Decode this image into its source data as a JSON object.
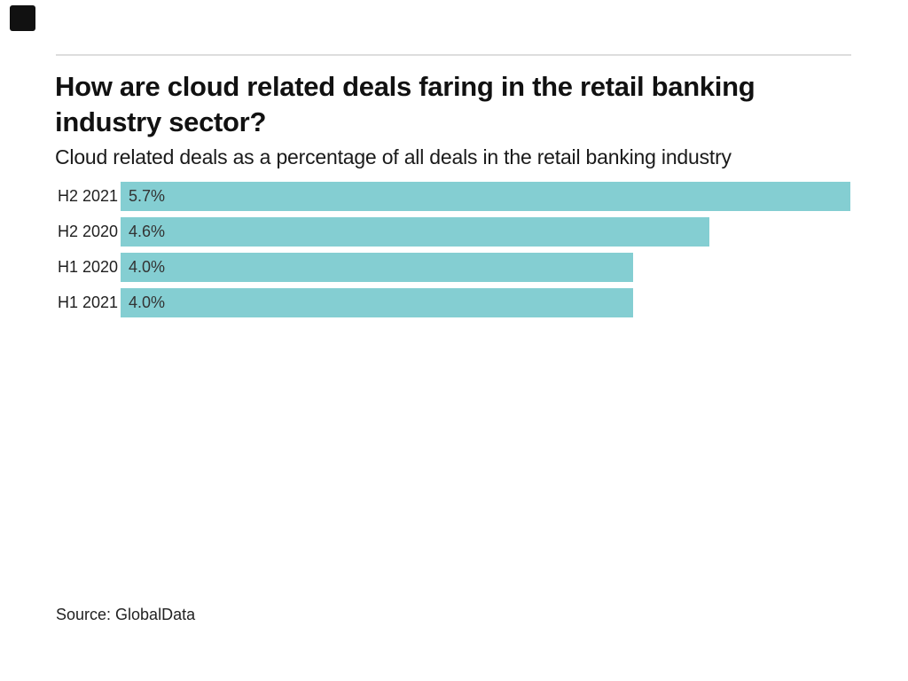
{
  "page": {
    "background": "#ffffff"
  },
  "header": {
    "logo_icon": "black-square-logo",
    "logo_color": "#111111",
    "divider_color": "#dddddd",
    "title_lines": [
      "How are cloud related deals faring in the retail banking",
      "industry sector?"
    ],
    "subtitle": "Cloud related deals as a percentage of all deals in the retail banking industry"
  },
  "chart_data": {
    "type": "bar",
    "orientation": "horizontal",
    "title": "How are cloud related deals faring in the retail banking industry sector?",
    "subtitle": "Cloud related deals as a percentage of all deals in the retail banking industry",
    "categories": [
      "H2 2021",
      "H2 2020",
      "H1 2020",
      "H1 2021"
    ],
    "values": [
      5.7,
      4.6,
      4.0,
      4.0
    ],
    "value_labels": [
      "5.7%",
      "4.6%",
      "4.0%",
      "4.0%"
    ],
    "unit": "%",
    "xlim": [
      0,
      5.7
    ],
    "bar_color": "#84ced2",
    "grid": false,
    "legend": false,
    "axis_ticks_visible": false,
    "value_label_position": "inside-left",
    "source": "Source: GlobalData"
  },
  "footer": {
    "source": "Source: GlobalData"
  }
}
